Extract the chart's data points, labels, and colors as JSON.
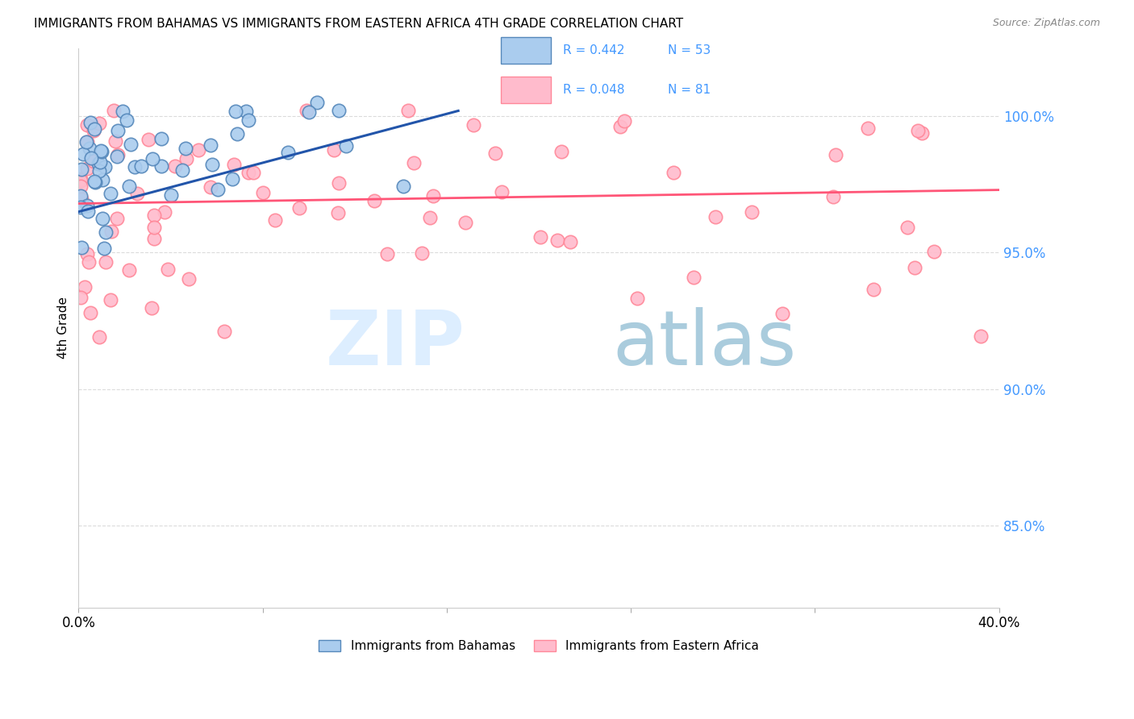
{
  "title": "IMMIGRANTS FROM BAHAMAS VS IMMIGRANTS FROM EASTERN AFRICA 4TH GRADE CORRELATION CHART",
  "source": "Source: ZipAtlas.com",
  "ylabel": "4th Grade",
  "yaxis_labels": [
    "100.0%",
    "95.0%",
    "90.0%",
    "85.0%"
  ],
  "yaxis_values": [
    1.0,
    0.95,
    0.9,
    0.85
  ],
  "xmin": 0.0,
  "xmax": 0.4,
  "ymin": 0.82,
  "ymax": 1.025,
  "color_blue_face": "#AACCEE",
  "color_blue_edge": "#5588BB",
  "color_blue_line": "#2255AA",
  "color_pink_face": "#FFBBCC",
  "color_pink_edge": "#FF8899",
  "color_pink_line": "#FF5577",
  "color_yaxis_text": "#4499FF",
  "grid_color": "#CCCCCC",
  "legend_r1": "R = 0.442",
  "legend_n1": "N = 53",
  "legend_r2": "R = 0.048",
  "legend_n2": "N = 81",
  "blue_trend_x0": 0.0,
  "blue_trend_y0": 0.965,
  "blue_trend_x1": 0.165,
  "blue_trend_y1": 1.002,
  "pink_trend_x0": 0.0,
  "pink_trend_y0": 0.968,
  "pink_trend_x1": 0.4,
  "pink_trend_y1": 0.973
}
